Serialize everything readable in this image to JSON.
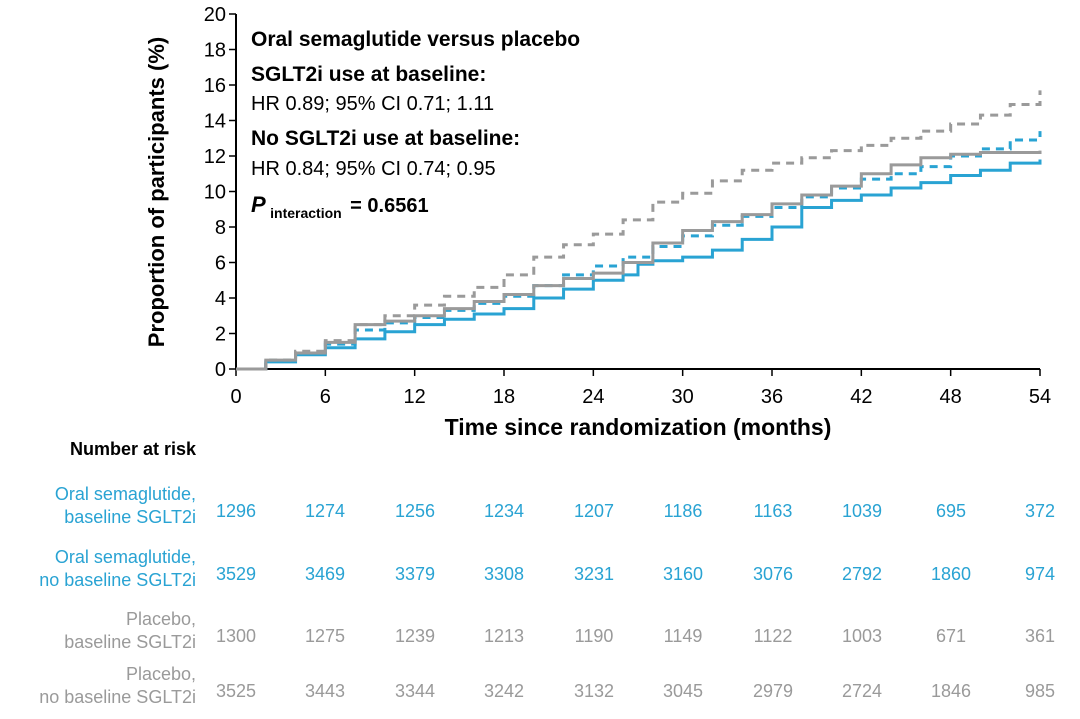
{
  "chart_data": {
    "type": "line",
    "xlabel": "Time since randomization (months)",
    "ylabel": "Proportion of participants (%)",
    "xlim": [
      0,
      54
    ],
    "ylim": [
      0,
      20
    ],
    "x_ticks": [
      0,
      6,
      12,
      18,
      24,
      30,
      36,
      42,
      48,
      54
    ],
    "y_ticks": [
      0,
      2,
      4,
      6,
      8,
      10,
      12,
      14,
      16,
      18,
      20
    ],
    "grid": false,
    "annotations": {
      "title": "Oral semaglutide versus placebo",
      "sglt2_heading": "SGLT2i use at baseline:",
      "sglt2_hr": "HR 0.89; 95% CI 0.71; 1.11",
      "no_sglt2_heading": "No SGLT2i use at baseline:",
      "no_sglt2_hr": "HR 0.84; 95% CI 0.74; 0.95",
      "p_symbol": "P",
      "p_subscript": "interaction",
      "p_value": "= 0.6561"
    },
    "series": [
      {
        "id": "sema_sglt2",
        "color": "#29A3D3",
        "style": "solid",
        "x": [
          0,
          2,
          4,
          6,
          8,
          10,
          12,
          14,
          16,
          18,
          20,
          22,
          24,
          26,
          27,
          28,
          30,
          32,
          34,
          36,
          38,
          40,
          42,
          44,
          46,
          48,
          50,
          52,
          54
        ],
        "y": [
          0,
          0.4,
          0.8,
          1.2,
          1.7,
          2.1,
          2.5,
          2.8,
          3.1,
          3.4,
          4.0,
          4.5,
          5.0,
          5.3,
          5.9,
          6.1,
          6.3,
          6.7,
          7.3,
          8.0,
          9.1,
          9.5,
          9.8,
          10.2,
          10.5,
          10.9,
          11.2,
          11.6,
          11.8
        ]
      },
      {
        "id": "sema_no_sglt2",
        "color": "#29A3D3",
        "style": "dashed",
        "x": [
          0,
          2,
          4,
          6,
          8,
          10,
          12,
          14,
          16,
          18,
          20,
          22,
          24,
          26,
          28,
          30,
          32,
          34,
          36,
          38,
          40,
          42,
          44,
          46,
          48,
          50,
          52,
          54
        ],
        "y": [
          0,
          0.5,
          0.9,
          1.4,
          2.2,
          2.6,
          2.9,
          3.3,
          3.7,
          4.1,
          4.7,
          5.3,
          5.8,
          6.3,
          6.9,
          7.5,
          8.1,
          8.6,
          9.1,
          9.7,
          10.2,
          10.7,
          11.0,
          11.4,
          12.0,
          12.4,
          12.9,
          13.4
        ]
      },
      {
        "id": "placebo_sglt2",
        "color": "#9A9A9A",
        "style": "solid",
        "x": [
          0,
          2,
          4,
          6,
          8,
          10,
          12,
          14,
          16,
          18,
          20,
          22,
          24,
          26,
          28,
          30,
          32,
          34,
          36,
          38,
          40,
          42,
          44,
          46,
          48,
          50,
          52,
          54
        ],
        "y": [
          0,
          0.5,
          0.9,
          1.5,
          2.5,
          2.7,
          3.0,
          3.4,
          3.8,
          4.2,
          4.7,
          5.1,
          5.4,
          6.0,
          7.1,
          7.8,
          8.3,
          8.7,
          9.3,
          9.8,
          10.3,
          11.0,
          11.5,
          11.9,
          12.1,
          12.2,
          12.2,
          12.3
        ]
      },
      {
        "id": "placebo_no_sglt2",
        "color": "#9A9A9A",
        "style": "dashed",
        "x": [
          0,
          2,
          4,
          6,
          8,
          10,
          12,
          14,
          16,
          18,
          20,
          22,
          24,
          26,
          28,
          30,
          32,
          34,
          36,
          38,
          40,
          42,
          44,
          46,
          48,
          50,
          52,
          54
        ],
        "y": [
          0,
          0.5,
          1.0,
          1.6,
          2.5,
          3.0,
          3.6,
          4.1,
          4.6,
          5.3,
          6.3,
          7.0,
          7.6,
          8.4,
          9.4,
          9.9,
          10.6,
          11.2,
          11.6,
          11.9,
          12.3,
          12.6,
          13.0,
          13.4,
          13.8,
          14.3,
          14.9,
          15.7
        ]
      }
    ]
  },
  "risk_table": {
    "heading": "Number at risk",
    "months": [
      0,
      6,
      12,
      18,
      24,
      30,
      36,
      42,
      48,
      54
    ],
    "rows": [
      {
        "label_line1": "Oral semaglutide,",
        "label_line2": "baseline SGLT2i",
        "color": "#29A3D3",
        "values": [
          "1296",
          "1274",
          "1256",
          "1234",
          "1207",
          "1186",
          "1163",
          "1039",
          "695",
          "372"
        ]
      },
      {
        "label_line1": "Oral semaglutide,",
        "label_line2": "no baseline SGLT2i",
        "color": "#29A3D3",
        "values": [
          "3529",
          "3469",
          "3379",
          "3308",
          "3231",
          "3160",
          "3076",
          "2792",
          "1860",
          "974"
        ]
      },
      {
        "label_line1": "Placebo,",
        "label_line2": "baseline SGLT2i",
        "color": "#9A9A9A",
        "values": [
          "1300",
          "1275",
          "1239",
          "1213",
          "1190",
          "1149",
          "1122",
          "1003",
          "671",
          "361"
        ]
      },
      {
        "label_line1": "Placebo,",
        "label_line2": "no baseline SGLT2i",
        "color": "#9A9A9A",
        "values": [
          "3525",
          "3443",
          "3344",
          "3242",
          "3132",
          "3045",
          "2979",
          "2724",
          "1846",
          "985"
        ]
      }
    ]
  }
}
